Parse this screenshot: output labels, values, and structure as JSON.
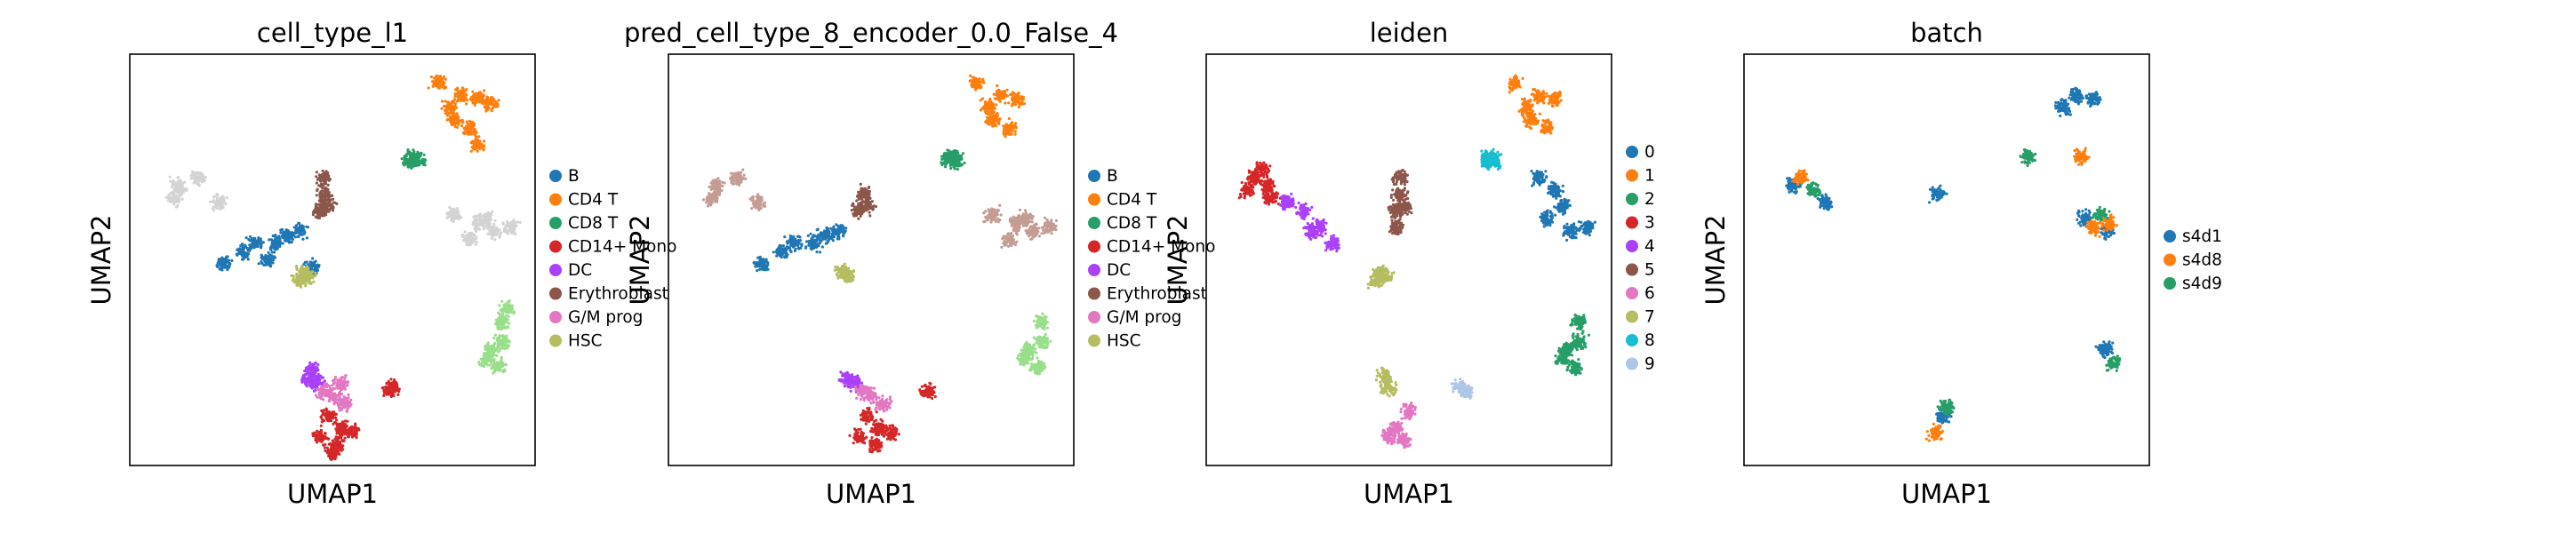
{
  "chart_data": [
    {
      "type": "scatter",
      "title": "cell_type_l1",
      "xlabel": "UMAP1",
      "ylabel": "UMAP2",
      "legend_position": "right",
      "grid": false,
      "series": [
        {
          "name": "B",
          "color": "#1f77b4",
          "points": [
            [
              0.42,
              0.43
            ],
            [
              0.39,
              0.44
            ],
            [
              0.36,
              0.46
            ],
            [
              0.31,
              0.46
            ],
            [
              0.28,
              0.48
            ],
            [
              0.23,
              0.51
            ],
            [
              0.45,
              0.52
            ],
            [
              0.34,
              0.5
            ]
          ]
        },
        {
          "name": "CD4 T",
          "color": "#ff7f0e",
          "points": [
            [
              0.79,
              0.13
            ],
            [
              0.82,
              0.1
            ],
            [
              0.86,
              0.11
            ],
            [
              0.8,
              0.16
            ],
            [
              0.84,
              0.18
            ],
            [
              0.86,
              0.22
            ],
            [
              0.76,
              0.07
            ],
            [
              0.89,
              0.12
            ]
          ]
        },
        {
          "name": "CD8 T",
          "color": "#279e68",
          "points": [
            [
              0.7,
              0.25
            ],
            [
              0.71,
              0.26
            ],
            [
              0.69,
              0.26
            ]
          ]
        },
        {
          "name": "CD14+ Mono",
          "color": "#d62728",
          "points": [
            [
              0.49,
              0.88
            ],
            [
              0.52,
              0.91
            ],
            [
              0.47,
              0.93
            ],
            [
              0.51,
              0.95
            ],
            [
              0.55,
              0.92
            ],
            [
              0.5,
              0.97
            ],
            [
              0.64,
              0.82
            ],
            [
              0.65,
              0.81
            ]
          ]
        },
        {
          "name": "DC",
          "color": "#aa40fc",
          "points": [
            [
              0.44,
              0.79
            ],
            [
              0.46,
              0.8
            ],
            [
              0.45,
              0.77
            ]
          ]
        },
        {
          "name": "Erythroblast",
          "color": "#8c564b",
          "points": [
            [
              0.48,
              0.34
            ],
            [
              0.47,
              0.38
            ],
            [
              0.49,
              0.37
            ],
            [
              0.48,
              0.3
            ]
          ]
        },
        {
          "name": "G/M prog",
          "color": "#e377c2",
          "points": [
            [
              0.5,
              0.83
            ],
            [
              0.53,
              0.85
            ],
            [
              0.48,
              0.82
            ],
            [
              0.52,
              0.8
            ]
          ]
        },
        {
          "name": "HSC",
          "color": "#b5bd61",
          "points": [
            [
              0.43,
              0.53
            ],
            [
              0.44,
              0.54
            ],
            [
              0.42,
              0.55
            ]
          ]
        }
      ],
      "unlabeled": {
        "color": "#d3d3d3",
        "points": [
          [
            0.12,
            0.32
          ],
          [
            0.17,
            0.3
          ],
          [
            0.22,
            0.36
          ],
          [
            0.11,
            0.35
          ],
          [
            0.86,
            0.41
          ],
          [
            0.9,
            0.43
          ],
          [
            0.94,
            0.42
          ],
          [
            0.84,
            0.45
          ],
          [
            0.88,
            0.4
          ],
          [
            0.8,
            0.39
          ]
        ]
      },
      "extra": {
        "color": "#98df8a",
        "points": [
          [
            0.89,
            0.72
          ],
          [
            0.91,
            0.76
          ],
          [
            0.88,
            0.74
          ],
          [
            0.92,
            0.7
          ],
          [
            0.92,
            0.65
          ],
          [
            0.93,
            0.62
          ]
        ]
      }
    },
    {
      "type": "scatter",
      "title": "pred_cell_type_8_encoder_0.0_False_4",
      "xlabel": "UMAP1",
      "ylabel": "UMAP2",
      "legend_position": "right",
      "grid": false,
      "series": [
        {
          "name": "B",
          "color": "#1f77b4",
          "points": [
            [
              0.42,
              0.43
            ],
            [
              0.39,
              0.44
            ],
            [
              0.36,
              0.46
            ],
            [
              0.31,
              0.46
            ],
            [
              0.28,
              0.48
            ],
            [
              0.23,
              0.51
            ]
          ]
        },
        {
          "name": "CD4 T",
          "color": "#ff7f0e",
          "points": [
            [
              0.79,
              0.13
            ],
            [
              0.82,
              0.1
            ],
            [
              0.86,
              0.11
            ],
            [
              0.8,
              0.16
            ],
            [
              0.84,
              0.18
            ],
            [
              0.76,
              0.07
            ]
          ]
        },
        {
          "name": "CD8 T",
          "color": "#279e68",
          "points": [
            [
              0.7,
              0.25
            ],
            [
              0.71,
              0.26
            ],
            [
              0.69,
              0.26
            ]
          ]
        },
        {
          "name": "CD14+ Mono",
          "color": "#d62728",
          "points": [
            [
              0.49,
              0.88
            ],
            [
              0.52,
              0.91
            ],
            [
              0.47,
              0.93
            ],
            [
              0.51,
              0.95
            ],
            [
              0.55,
              0.92
            ],
            [
              0.64,
              0.82
            ]
          ]
        },
        {
          "name": "DC",
          "color": "#aa40fc",
          "points": [
            [
              0.44,
              0.79
            ],
            [
              0.46,
              0.8
            ]
          ]
        },
        {
          "name": "Erythroblast",
          "color": "#8c564b",
          "points": [
            [
              0.48,
              0.34
            ],
            [
              0.47,
              0.38
            ],
            [
              0.49,
              0.37
            ]
          ]
        },
        {
          "name": "G/M prog",
          "color": "#e377c2",
          "points": [
            [
              0.5,
              0.83
            ],
            [
              0.53,
              0.85
            ],
            [
              0.48,
              0.82
            ]
          ]
        },
        {
          "name": "HSC",
          "color": "#b5bd61",
          "points": [
            [
              0.43,
              0.53
            ],
            [
              0.44,
              0.54
            ]
          ]
        }
      ],
      "unlabeled": {
        "color": "#c49c94",
        "points": [
          [
            0.12,
            0.32
          ],
          [
            0.17,
            0.3
          ],
          [
            0.22,
            0.36
          ],
          [
            0.11,
            0.35
          ],
          [
            0.86,
            0.41
          ],
          [
            0.9,
            0.43
          ],
          [
            0.94,
            0.42
          ],
          [
            0.84,
            0.45
          ],
          [
            0.88,
            0.4
          ],
          [
            0.8,
            0.39
          ]
        ]
      },
      "extra": {
        "color": "#98df8a",
        "points": [
          [
            0.89,
            0.72
          ],
          [
            0.91,
            0.76
          ],
          [
            0.88,
            0.74
          ],
          [
            0.92,
            0.7
          ],
          [
            0.92,
            0.65
          ]
        ]
      }
    },
    {
      "type": "scatter",
      "title": "leiden",
      "xlabel": "UMAP1",
      "ylabel": "UMAP2",
      "legend_position": "right",
      "grid": false,
      "series": [
        {
          "name": "0",
          "color": "#1f77b4",
          "points": [
            [
              0.84,
              0.4
            ],
            [
              0.9,
              0.43
            ],
            [
              0.94,
              0.42
            ],
            [
              0.82,
              0.3
            ],
            [
              0.86,
              0.33
            ],
            [
              0.88,
              0.37
            ]
          ]
        },
        {
          "name": "1",
          "color": "#ff7f0e",
          "points": [
            [
              0.79,
              0.13
            ],
            [
              0.82,
              0.1
            ],
            [
              0.86,
              0.11
            ],
            [
              0.8,
              0.16
            ],
            [
              0.84,
              0.18
            ],
            [
              0.76,
              0.07
            ]
          ]
        },
        {
          "name": "2",
          "color": "#279e68",
          "points": [
            [
              0.89,
              0.72
            ],
            [
              0.91,
              0.76
            ],
            [
              0.88,
              0.74
            ],
            [
              0.92,
              0.7
            ],
            [
              0.92,
              0.65
            ]
          ]
        },
        {
          "name": "3",
          "color": "#d62728",
          "points": [
            [
              0.12,
              0.3
            ],
            [
              0.14,
              0.28
            ],
            [
              0.1,
              0.33
            ],
            [
              0.15,
              0.32
            ],
            [
              0.16,
              0.35
            ]
          ]
        },
        {
          "name": "4",
          "color": "#aa40fc",
          "points": [
            [
              0.2,
              0.36
            ],
            [
              0.24,
              0.38
            ],
            [
              0.28,
              0.42
            ],
            [
              0.31,
              0.46
            ],
            [
              0.26,
              0.43
            ]
          ]
        },
        {
          "name": "5",
          "color": "#8c564b",
          "points": [
            [
              0.48,
              0.34
            ],
            [
              0.47,
              0.38
            ],
            [
              0.49,
              0.37
            ],
            [
              0.48,
              0.3
            ],
            [
              0.47,
              0.42
            ]
          ]
        },
        {
          "name": "6",
          "color": "#e377c2",
          "points": [
            [
              0.47,
              0.91
            ],
            [
              0.49,
              0.94
            ],
            [
              0.45,
              0.93
            ],
            [
              0.5,
              0.87
            ]
          ]
        },
        {
          "name": "7",
          "color": "#b5bd61",
          "points": [
            [
              0.43,
              0.53
            ],
            [
              0.44,
              0.54
            ],
            [
              0.42,
              0.55
            ],
            [
              0.45,
              0.81
            ],
            [
              0.44,
              0.78
            ]
          ]
        },
        {
          "name": "8",
          "color": "#17becf",
          "points": [
            [
              0.7,
              0.25
            ],
            [
              0.71,
              0.26
            ],
            [
              0.69,
              0.26
            ]
          ]
        },
        {
          "name": "9",
          "color": "#aec7e8",
          "points": [
            [
              0.63,
              0.81
            ],
            [
              0.64,
              0.82
            ]
          ]
        }
      ]
    },
    {
      "type": "scatter",
      "title": "batch",
      "xlabel": "UMAP1",
      "ylabel": "UMAP2",
      "legend_position": "right",
      "grid": false,
      "series": [
        {
          "name": "s4d1",
          "color": "#1f77b4",
          "points": [
            [
              0.79,
              0.13
            ],
            [
              0.82,
              0.1
            ],
            [
              0.86,
              0.11
            ],
            [
              0.84,
              0.4
            ],
            [
              0.9,
              0.43
            ],
            [
              0.12,
              0.32
            ],
            [
              0.2,
              0.36
            ],
            [
              0.48,
              0.34
            ],
            [
              0.49,
              0.88
            ],
            [
              0.89,
              0.72
            ]
          ]
        },
        {
          "name": "s4d8",
          "color": "#ff7f0e",
          "points": [
            [
              0.86,
              0.42
            ],
            [
              0.9,
              0.41
            ],
            [
              0.14,
              0.3
            ],
            [
              0.47,
              0.92
            ],
            [
              0.83,
              0.25
            ]
          ]
        },
        {
          "name": "s4d9",
          "color": "#279e68",
          "points": [
            [
              0.88,
              0.39
            ],
            [
              0.17,
              0.33
            ],
            [
              0.7,
              0.25
            ],
            [
              0.91,
              0.75
            ],
            [
              0.5,
              0.86
            ]
          ]
        }
      ]
    }
  ]
}
